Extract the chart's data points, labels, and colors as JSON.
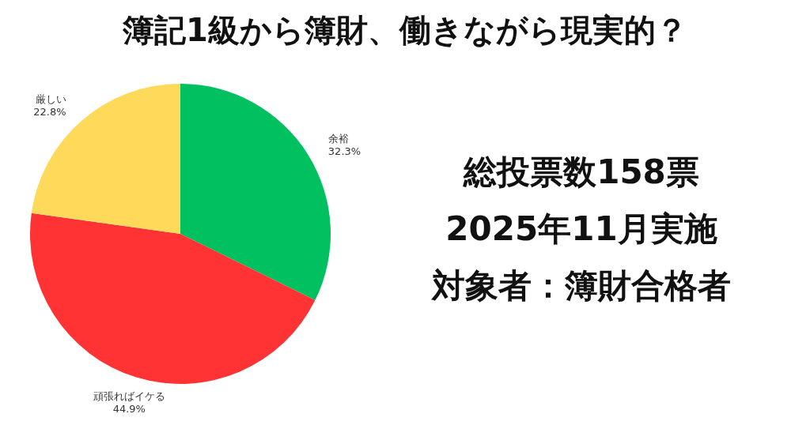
{
  "chart_data": {
    "type": "pie",
    "title": "簿記1級から簿財、働きながら現実的？",
    "categories": [
      "余裕",
      "頑張ればイケる",
      "厳しい"
    ],
    "values": [
      32.3,
      44.9,
      22.8
    ],
    "colors": [
      "#00c060",
      "#ff3333",
      "#ffd95a"
    ],
    "value_labels": [
      "32.3%",
      "44.9%",
      "22.8%"
    ],
    "annotations": [
      "総投票数158票",
      "2025年11月実施",
      "対象者：簿財合格者"
    ]
  }
}
